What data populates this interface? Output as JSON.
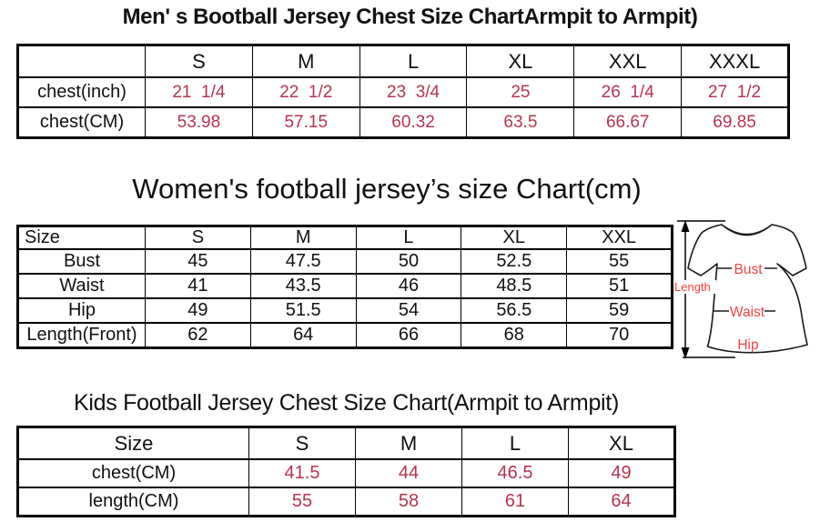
{
  "colors": {
    "background": "#ffffff",
    "table_border": "#000000",
    "heading_text": "#111111",
    "value_red": "#b5344f",
    "diagram_label_red": "#fb4040"
  },
  "chart_data": [
    {
      "type": "table",
      "title": "Men' s Bootball Jersey Chest Size ChartArmpit to Armpit)",
      "columns": [
        "",
        "S",
        "M",
        "L",
        "XL",
        "XXL",
        "XXXL"
      ],
      "rows": [
        {
          "label": "chest(inch)",
          "values": [
            "21  1/4",
            "22  1/2",
            "23  3/4",
            "25",
            "26  1/4",
            "27  1/2"
          ]
        },
        {
          "label": "chest(CM)",
          "values": [
            "53.98",
            "57.15",
            "60.32",
            "63.5",
            "66.67",
            "69.85"
          ]
        }
      ]
    },
    {
      "type": "table",
      "title": "Women's football jersey’s size Chart(cm)",
      "columns": [
        "Size",
        "S",
        "M",
        "L",
        "XL",
        "XXL"
      ],
      "rows": [
        {
          "label": "Bust",
          "values": [
            "45",
            "47.5",
            "50",
            "52.5",
            "55"
          ]
        },
        {
          "label": "Waist",
          "values": [
            "41",
            "43.5",
            "46",
            "48.5",
            "51"
          ]
        },
        {
          "label": "Hip",
          "values": [
            "49",
            "51.5",
            "54",
            "56.5",
            "59"
          ]
        },
        {
          "label": "Length(Front)",
          "values": [
            "62",
            "64",
            "66",
            "68",
            "70"
          ]
        }
      ]
    },
    {
      "type": "table",
      "title": "Kids Football Jersey Chest Size Chart(Armpit to Armpit)",
      "columns": [
        "Size",
        "S",
        "M",
        "L",
        "XL"
      ],
      "rows": [
        {
          "label": "chest(CM)",
          "values": [
            "41.5",
            "44",
            "46.5",
            "49"
          ]
        },
        {
          "label": "length(CM)",
          "values": [
            "55",
            "58",
            "61",
            "64"
          ]
        }
      ]
    }
  ],
  "diagram": {
    "length_label": "Length",
    "bust_label": "Bust",
    "waist_label": "Waist",
    "hip_label": "Hip"
  }
}
